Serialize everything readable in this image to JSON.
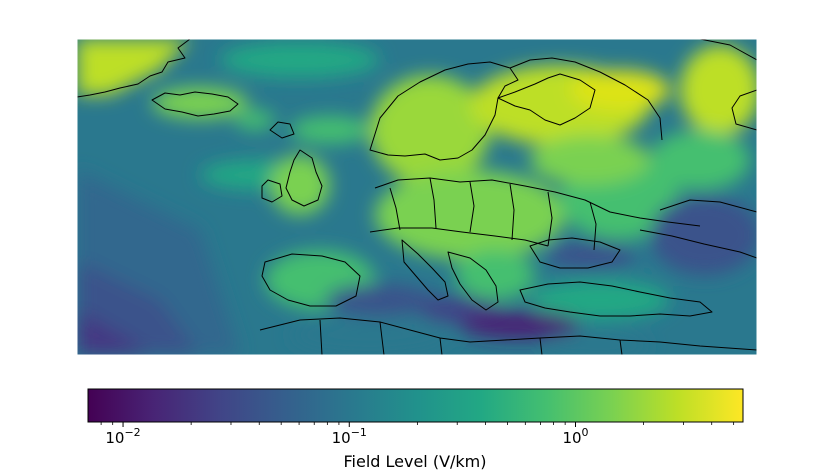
{
  "colorbar": {
    "label": "Field Level (V/km)",
    "scale": "log",
    "colormap": "viridis",
    "range": [
      0.007,
      5.5
    ],
    "ticks": [
      {
        "value": 0.01,
        "base": "10",
        "exp": "−2"
      },
      {
        "value": 0.1,
        "base": "10",
        "exp": "−1"
      },
      {
        "value": 1,
        "base": "10",
        "exp": "0"
      }
    ]
  },
  "map": {
    "region": "Europe",
    "projection": "equirectangular",
    "quantity": "geoelectric field level",
    "country_borders": true
  },
  "colors": {
    "low": "#440154",
    "mid": "#21918c",
    "high": "#fde725",
    "border": "#000000"
  }
}
